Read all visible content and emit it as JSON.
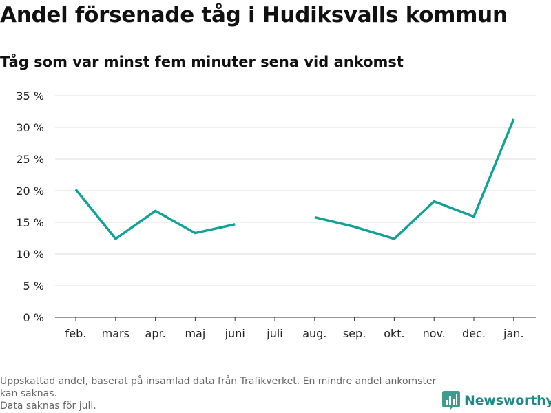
{
  "header": {
    "title": "Andel försenade tåg i Hudiksvalls kommun",
    "subtitle": "Tåg som var minst fem minuter sena vid ankomst"
  },
  "footer": {
    "note_line1": "Uppskattad andel, baserat på insamlad data från Trafikverket. En mindre andel ankomster kan saknas.",
    "note_line2": "Data saknas för juli.",
    "brand": "Newsworthy",
    "brand_icon": "bar-chart-logo-icon"
  },
  "colors": {
    "line": "#12a196",
    "grid": "#dddddd",
    "axis": "#333333",
    "brand": "#1f8a85"
  },
  "chart_data": {
    "type": "line",
    "categories": [
      "feb.",
      "mars",
      "apr.",
      "maj",
      "juni",
      "juli",
      "aug.",
      "sep.",
      "okt.",
      "nov.",
      "dec.",
      "jan."
    ],
    "series": [
      {
        "values": [
          20.2,
          12.4,
          16.8,
          13.3,
          14.7,
          null,
          15.8,
          14.3,
          12.4,
          18.3,
          15.9,
          31.3
        ]
      }
    ],
    "yticks": [
      "0 %",
      "5 %",
      "10 %",
      "15 %",
      "20 %",
      "25 %",
      "30 %",
      "35 %"
    ],
    "ylim": [
      0,
      35
    ],
    "ytick_step": 5,
    "grid": true,
    "legend": "none"
  }
}
